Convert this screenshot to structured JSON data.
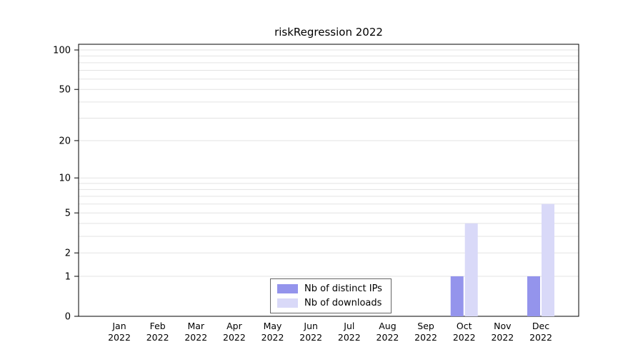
{
  "title": "riskRegression 2022",
  "chart_data": {
    "type": "bar",
    "title": "riskRegression 2022",
    "categories": [
      "Jan",
      "Feb",
      "Mar",
      "Apr",
      "May",
      "Jun",
      "Jul",
      "Aug",
      "Sep",
      "Oct",
      "Nov",
      "Dec"
    ],
    "year": "2022",
    "series": [
      {
        "name": "Nb of distinct IPs",
        "color": "#9494ec",
        "values": [
          0,
          0,
          0,
          0,
          0,
          0,
          0,
          0,
          0,
          1,
          0,
          1
        ]
      },
      {
        "name": "Nb of downloads",
        "color": "#d9d9f8",
        "values": [
          0,
          0,
          0,
          0,
          0,
          0,
          0,
          0,
          0,
          4,
          0,
          6
        ]
      }
    ],
    "xlabel": "",
    "ylabel": "",
    "y_scale": "log1p",
    "ylim": [
      0,
      100
    ],
    "y_ticks": [
      0,
      1,
      2,
      5,
      10,
      20,
      50,
      100
    ],
    "y_minor_gridlines": [
      1,
      2,
      3,
      4,
      5,
      6,
      7,
      8,
      9,
      10,
      20,
      30,
      40,
      50,
      60,
      70,
      80,
      90,
      100
    ],
    "grid": true,
    "legend_position": "bottom-center"
  },
  "legend": {
    "items": [
      {
        "label": "Nb of distinct IPs",
        "color": "#9494ec"
      },
      {
        "label": "Nb of downloads",
        "color": "#d9d9f8"
      }
    ]
  }
}
